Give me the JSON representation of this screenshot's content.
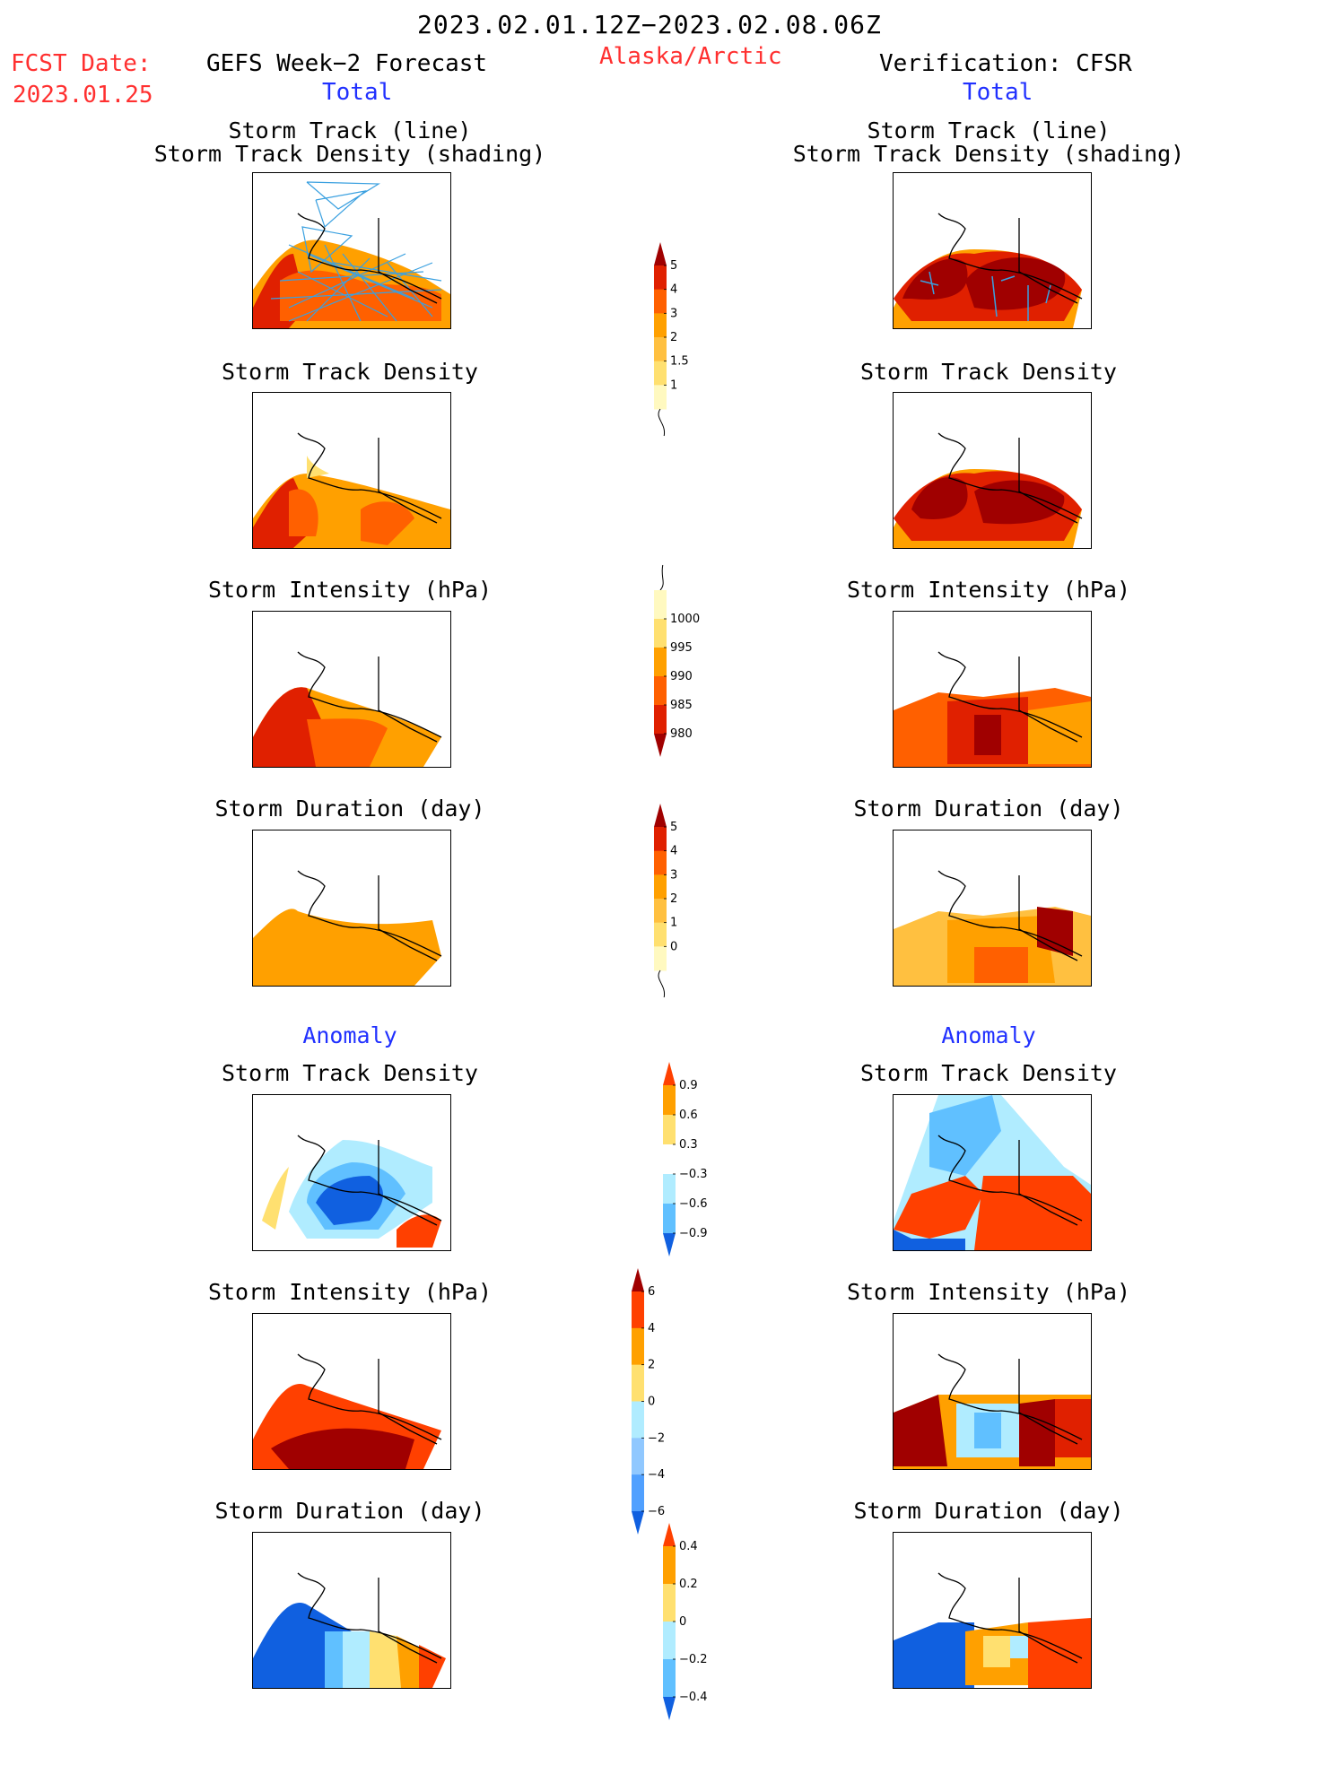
{
  "header": {
    "date_range": "2023.02.01.12Z−2023.02.08.06Z",
    "fcst_label": "FCST Date:",
    "fcst_date": "2023.01.25",
    "left_title": "GEFS Week−2 Forecast",
    "region": "Alaska/Arctic",
    "right_title": "Verification: CFSR",
    "total_left": "Total",
    "total_right": "Total",
    "anomaly_left": "Anomaly",
    "anomaly_right": "Anomaly"
  },
  "panels": {
    "track_line": "Storm Track (line)",
    "track_shading": "Storm Track Density (shading)",
    "density": "Storm Track Density",
    "intensity": "Storm Intensity (hPa)",
    "duration": "Storm Duration (day)"
  },
  "colorbars": {
    "density": {
      "labels": [
        "1",
        "1.5",
        "2",
        "3",
        "4",
        "5"
      ],
      "colors": [
        "#fff9c0",
        "#ffe070",
        "#ffc040",
        "#ffa000",
        "#ff6000",
        "#e02000",
        "#a00000"
      ]
    },
    "intensity": {
      "labels": [
        "1000",
        "995",
        "990",
        "985",
        "980"
      ],
      "colors": [
        "#fff9c0",
        "#ffe070",
        "#ffa000",
        "#ff6000",
        "#e02000",
        "#a00000"
      ]
    },
    "duration": {
      "labels": [
        "0",
        "1",
        "2",
        "3",
        "4",
        "5"
      ],
      "colors": [
        "#fff9c0",
        "#ffe070",
        "#ffc040",
        "#ffa000",
        "#ff6000",
        "#e02000",
        "#a00000"
      ]
    },
    "anom_density": {
      "labels": [
        "0.9",
        "0.6",
        "0.3",
        "−0.3",
        "−0.6",
        "−0.9"
      ],
      "colors": [
        "#ff4000",
        "#ffa000",
        "#ffe070",
        "#ffffff",
        "#b0ecff",
        "#60c0ff",
        "#1060e0"
      ]
    },
    "anom_intensity": {
      "labels": [
        "6",
        "4",
        "2",
        "0",
        "−2",
        "−4",
        "−6"
      ],
      "colors": [
        "#a00000",
        "#ff4000",
        "#ffa000",
        "#ffe070",
        "#b0ecff",
        "#90c8ff",
        "#50a0ff",
        "#1060e0"
      ]
    },
    "anom_duration": {
      "labels": [
        "0.4",
        "0.2",
        "0",
        "−0.2",
        "−0.4"
      ],
      "colors": [
        "#ff4000",
        "#ffa000",
        "#ffe070",
        "#b0ecff",
        "#60c0ff",
        "#1060e0"
      ]
    }
  }
}
